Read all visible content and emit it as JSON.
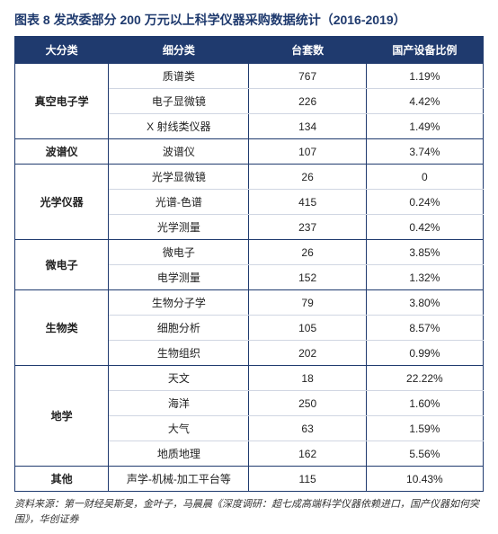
{
  "title": "图表 8 发改委部分 200 万元以上科学仪器采购数据统计（2016-2019）",
  "header_bg": "#1f3a6e",
  "title_color": "#1f3a6e",
  "columns": [
    "大分类",
    "细分类",
    "台套数",
    "国产设备比例"
  ],
  "groups": [
    {
      "category": "真空电子学",
      "rows": [
        {
          "sub": "质谱类",
          "count": "767",
          "ratio": "1.19%"
        },
        {
          "sub": "电子显微镜",
          "count": "226",
          "ratio": "4.42%"
        },
        {
          "sub": "X 射线类仪器",
          "count": "134",
          "ratio": "1.49%"
        }
      ]
    },
    {
      "category": "波谱仪",
      "rows": [
        {
          "sub": "波谱仪",
          "count": "107",
          "ratio": "3.74%"
        }
      ]
    },
    {
      "category": "光学仪器",
      "rows": [
        {
          "sub": "光学显微镜",
          "count": "26",
          "ratio": "0"
        },
        {
          "sub": "光谱-色谱",
          "count": "415",
          "ratio": "0.24%"
        },
        {
          "sub": "光学测量",
          "count": "237",
          "ratio": "0.42%"
        }
      ]
    },
    {
      "category": "微电子",
      "rows": [
        {
          "sub": "微电子",
          "count": "26",
          "ratio": "3.85%"
        },
        {
          "sub": "电学测量",
          "count": "152",
          "ratio": "1.32%"
        }
      ]
    },
    {
      "category": "生物类",
      "rows": [
        {
          "sub": "生物分子学",
          "count": "79",
          "ratio": "3.80%"
        },
        {
          "sub": "细胞分析",
          "count": "105",
          "ratio": "8.57%"
        },
        {
          "sub": "生物组织",
          "count": "202",
          "ratio": "0.99%"
        }
      ]
    },
    {
      "category": "地学",
      "rows": [
        {
          "sub": "天文",
          "count": "18",
          "ratio": "22.22%"
        },
        {
          "sub": "海洋",
          "count": "250",
          "ratio": "1.60%"
        },
        {
          "sub": "大气",
          "count": "63",
          "ratio": "1.59%"
        },
        {
          "sub": "地质地理",
          "count": "162",
          "ratio": "5.56%"
        }
      ]
    },
    {
      "category": "其他",
      "rows": [
        {
          "sub": "声学-机械-加工平台等",
          "count": "115",
          "ratio": "10.43%"
        }
      ]
    }
  ],
  "footnote": "资料来源：第一财经吴斯旻，金叶子，马晨晨《深度调研：超七成高端科学仪器依赖进口，国产仪器如何突围》，华创证券"
}
